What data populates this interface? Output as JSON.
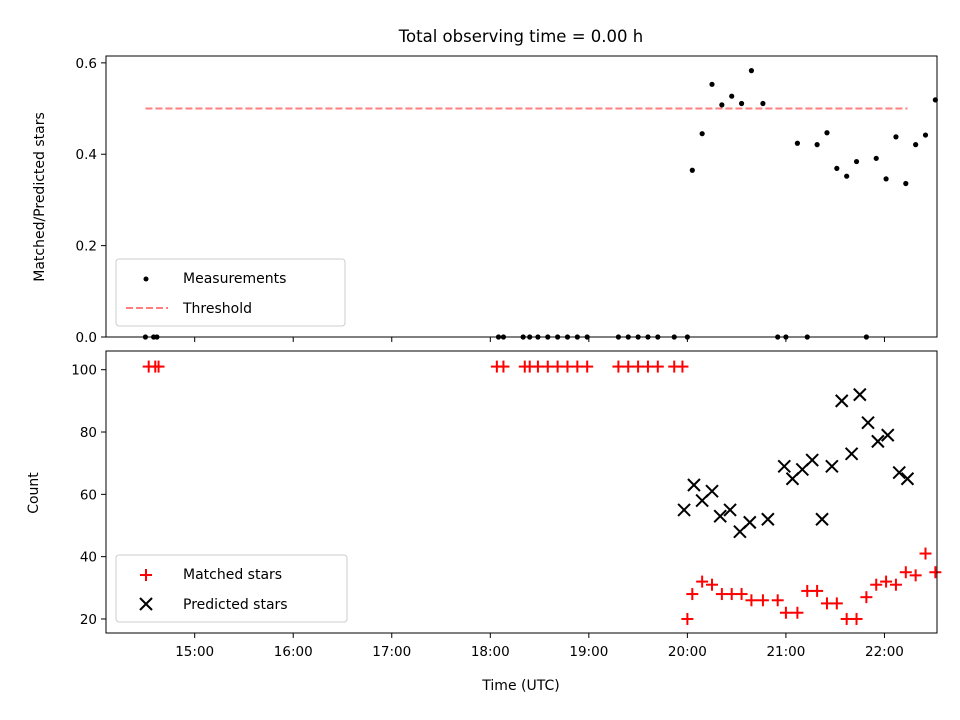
{
  "chart_data": [
    {
      "type": "scatter",
      "title": "Total observing time = 0.00 h",
      "xlabel": "",
      "ylabel": "Matched/Predicted stars",
      "ylim": [
        0,
        0.615
      ],
      "yticks": [
        0.0,
        0.2,
        0.4,
        0.6
      ],
      "ytick_labels": [
        "0.0",
        "0.2",
        "0.4",
        "0.6"
      ],
      "xlim": [
        "14:06",
        "22:32"
      ],
      "series": [
        {
          "name": "Measurements",
          "color": "#000000",
          "marker": "dot",
          "x": [
            "14:30",
            "14:35",
            "14:37",
            "18:05",
            "18:08",
            "18:20",
            "18:24",
            "18:29",
            "18:35",
            "18:41",
            "18:47",
            "18:53",
            "18:59",
            "19:18",
            "19:24",
            "19:30",
            "19:36",
            "19:42",
            "19:52",
            "20:00",
            "20:03",
            "20:09",
            "20:15",
            "20:21",
            "20:27",
            "20:33",
            "20:39",
            "20:46",
            "20:55",
            "21:00",
            "21:07",
            "21:13",
            "21:19",
            "21:25",
            "21:31",
            "21:37",
            "21:43",
            "21:49",
            "21:55",
            "22:01",
            "22:07",
            "22:13",
            "22:19",
            "22:25",
            "22:31"
          ],
          "values": [
            0,
            0,
            0,
            0,
            0,
            0,
            0,
            0,
            0,
            0,
            0,
            0,
            0,
            0,
            0,
            0,
            0,
            0,
            0,
            0,
            0.365,
            0.445,
            0.553,
            0.508,
            0.527,
            0.511,
            0.583,
            0.511,
            0,
            0,
            0.424,
            0,
            0.421,
            0.447,
            0.369,
            0.352,
            0.384,
            0,
            0.391,
            0.346,
            0.438,
            0.336,
            0.421,
            0.442,
            0.519
          ]
        },
        {
          "name": "Threshold",
          "color": "#ff7f7f",
          "line": "dashed",
          "x": [
            "14:30",
            "22:14"
          ],
          "values": [
            0.5,
            0.5
          ]
        }
      ],
      "legend": "lower-left"
    },
    {
      "type": "scatter",
      "title": "",
      "xlabel": "Time (UTC)",
      "ylabel": "Count",
      "ylim": [
        15.5,
        106
      ],
      "yticks": [
        20,
        40,
        60,
        80,
        100
      ],
      "ytick_labels": [
        "20",
        "40",
        "60",
        "80",
        "100"
      ],
      "xlim": [
        "14:06",
        "22:32"
      ],
      "xticks": [
        "15:00",
        "16:00",
        "17:00",
        "18:00",
        "19:00",
        "20:00",
        "21:00",
        "22:00"
      ],
      "series": [
        {
          "name": "Matched stars",
          "color": "#ff0000",
          "marker": "plus",
          "x": [
            "14:32",
            "14:36",
            "14:38",
            "18:04",
            "18:08",
            "18:21",
            "18:24",
            "18:29",
            "18:35",
            "18:41",
            "18:47",
            "18:53",
            "18:59",
            "19:18",
            "19:24",
            "19:30",
            "19:36",
            "19:42",
            "19:52",
            "19:57",
            "20:00",
            "20:03",
            "20:09",
            "20:15",
            "20:21",
            "20:27",
            "20:33",
            "20:39",
            "20:46",
            "20:55",
            "21:00",
            "21:07",
            "21:13",
            "21:19",
            "21:25",
            "21:31",
            "21:37",
            "21:43",
            "21:49",
            "21:55",
            "22:01",
            "22:07",
            "22:13",
            "22:19",
            "22:25",
            "22:31"
          ],
          "values": [
            101,
            101,
            101,
            101,
            101,
            101,
            101,
            101,
            101,
            101,
            101,
            101,
            101,
            101,
            101,
            101,
            101,
            101,
            101,
            101,
            20,
            28,
            32,
            31,
            28,
            28,
            28,
            26,
            26,
            26,
            22,
            22,
            29,
            29,
            25,
            25,
            20,
            20,
            27,
            31,
            32,
            31,
            35,
            34,
            41,
            35
          ]
        },
        {
          "name": "Predicted stars",
          "color": "#000000",
          "marker": "x",
          "x": [
            "19:58",
            "20:04",
            "20:09",
            "20:15",
            "20:20",
            "20:26",
            "20:32",
            "20:38",
            "20:49",
            "20:59",
            "21:04",
            "21:10",
            "21:16",
            "21:22",
            "21:28",
            "21:34",
            "21:40",
            "21:45",
            "21:50",
            "21:56",
            "22:02",
            "22:09",
            "22:14"
          ],
          "values": [
            55,
            63,
            58,
            61,
            53,
            55,
            48,
            51,
            52,
            69,
            65,
            68,
            71,
            52,
            69,
            90,
            73,
            92,
            83,
            77,
            79,
            67,
            65
          ]
        }
      ],
      "legend": "lower-left"
    }
  ]
}
